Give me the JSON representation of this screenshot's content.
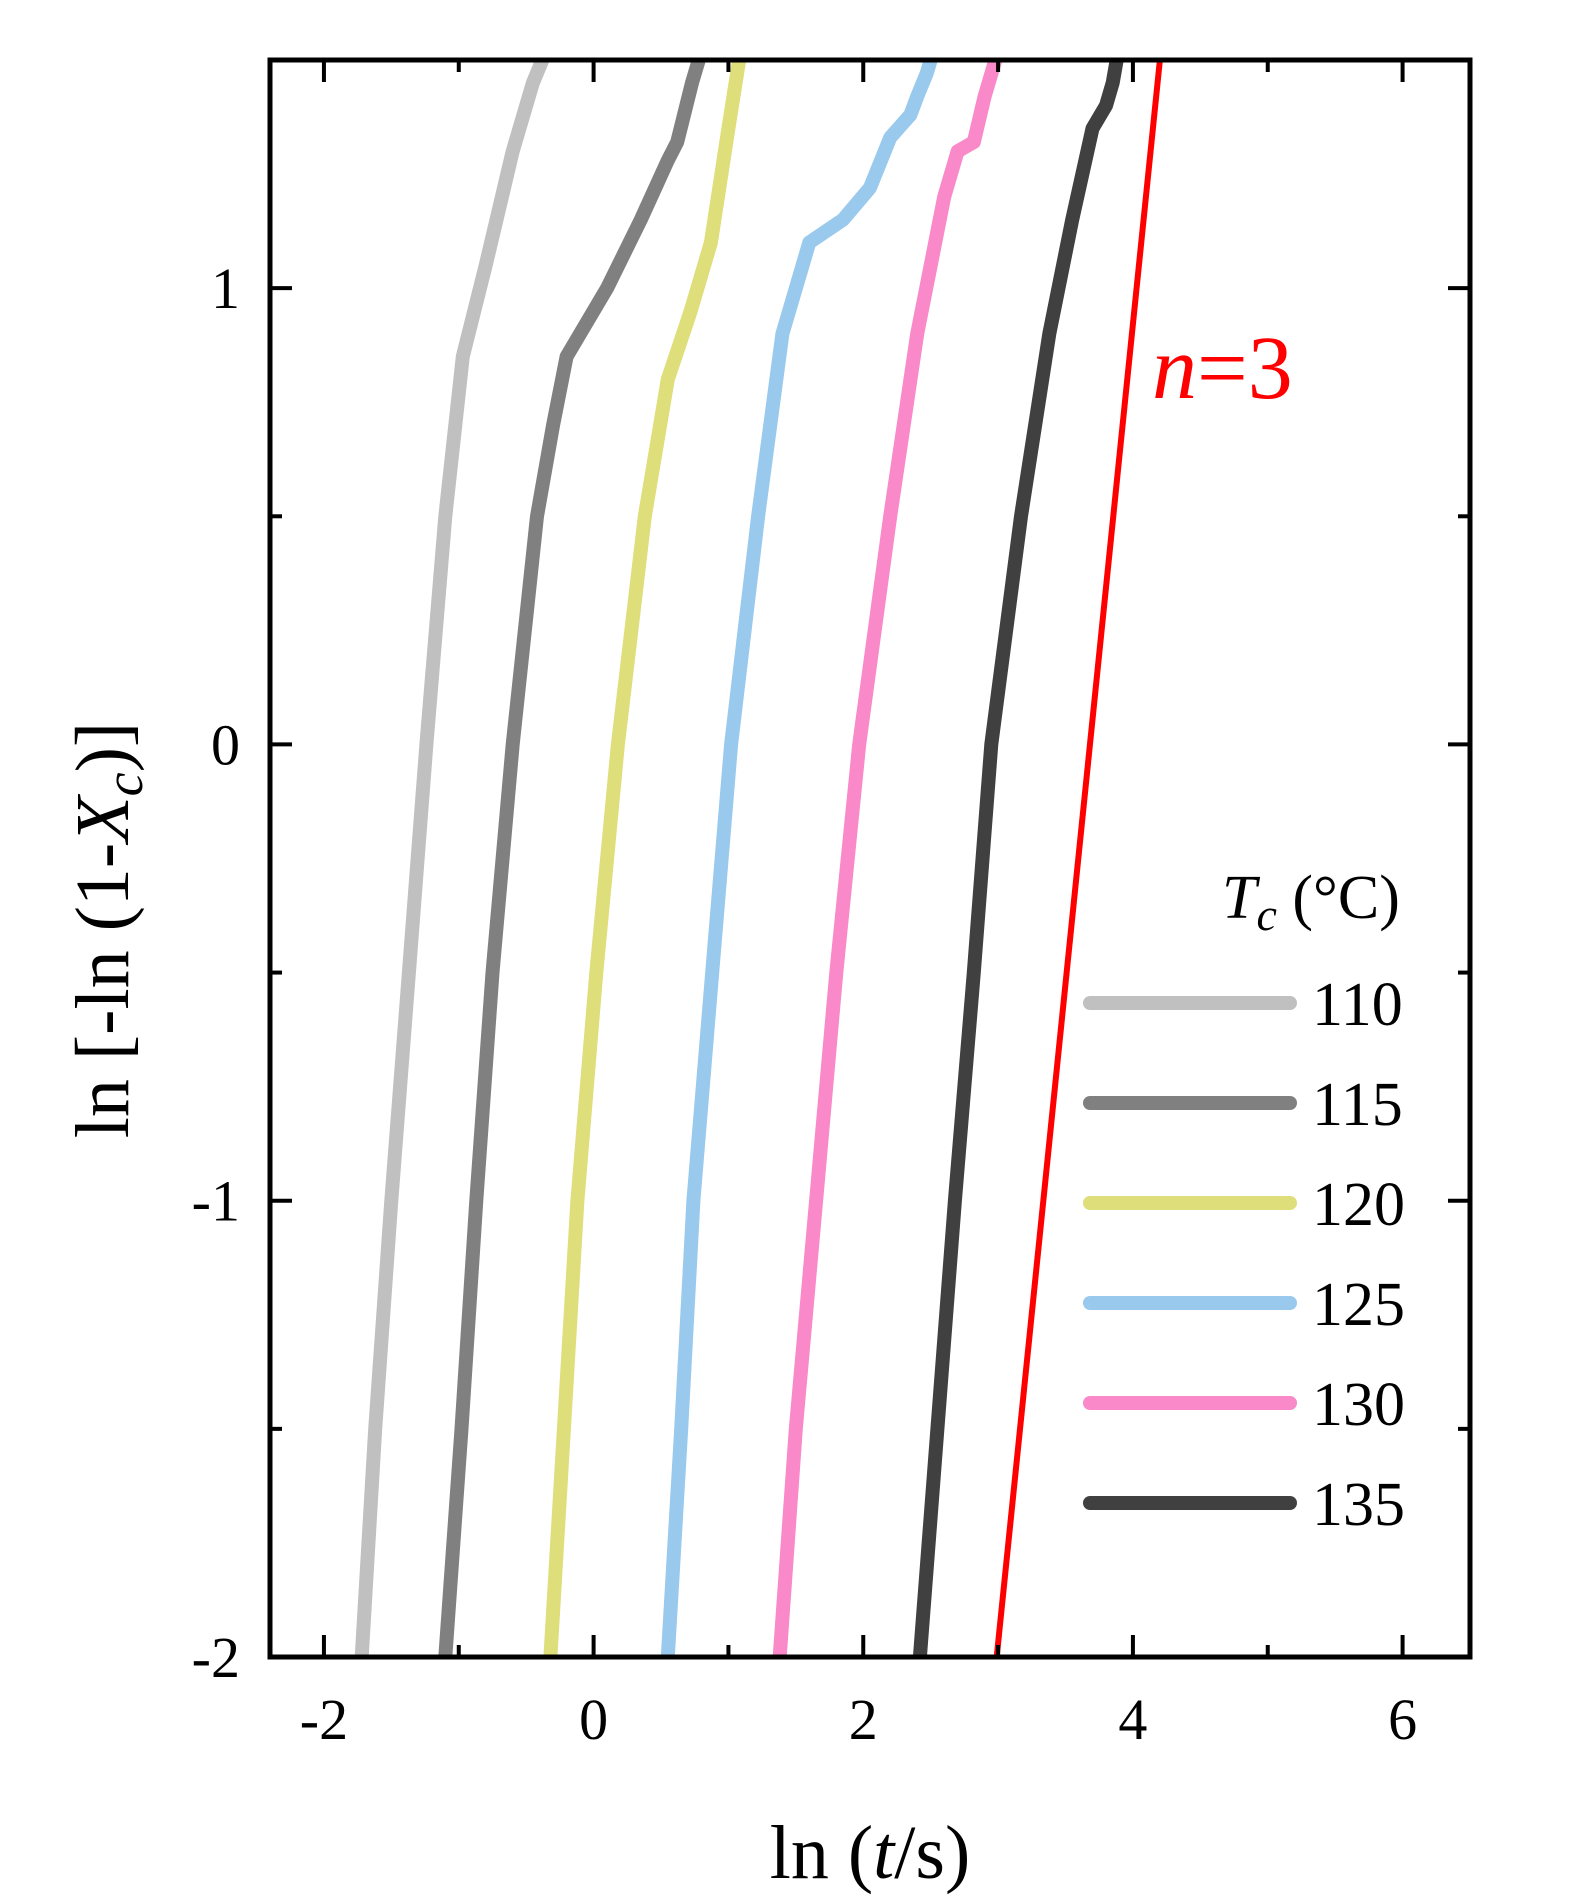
{
  "chart_data": {
    "type": "line",
    "xlabel": {
      "prefix": "ln (",
      "var": "t",
      "suffix": "/s)"
    },
    "ylabel": {
      "prefix": "ln [-ln (1-",
      "var": "X",
      "sub": "c",
      "suffix": ")]"
    },
    "xlim": [
      -2.4,
      6.5
    ],
    "ylim": [
      -2,
      1.5
    ],
    "xticks": [
      -2,
      0,
      2,
      4,
      6
    ],
    "xtick_labels": [
      "-2",
      "0",
      "2",
      "4",
      "6"
    ],
    "yticks": [
      -2,
      -1,
      0,
      1
    ],
    "ytick_labels": [
      "-2",
      "-1",
      "0",
      "1"
    ],
    "legend": {
      "title_var": "T",
      "title_sub": "c",
      "title_unit": " (°C)",
      "placement": "bottom-right"
    },
    "series": [
      {
        "name": "110",
        "color": "#c0c0c0",
        "points": [
          [
            -1.72,
            -2
          ],
          [
            -1.62,
            -1.5
          ],
          [
            -1.5,
            -1.0
          ],
          [
            -1.37,
            -0.5
          ],
          [
            -1.24,
            0
          ],
          [
            -1.1,
            0.5
          ],
          [
            -0.97,
            0.85
          ],
          [
            -0.8,
            1.05
          ],
          [
            -0.6,
            1.3
          ],
          [
            -0.45,
            1.45
          ],
          [
            -0.38,
            1.5
          ]
        ]
      },
      {
        "name": "115",
        "color": "#808080",
        "points": [
          [
            -1.1,
            -2
          ],
          [
            -0.98,
            -1.5
          ],
          [
            -0.87,
            -1.0
          ],
          [
            -0.75,
            -0.5
          ],
          [
            -0.6,
            0
          ],
          [
            -0.42,
            0.5
          ],
          [
            -0.3,
            0.7
          ],
          [
            -0.2,
            0.85
          ],
          [
            0.1,
            1.0
          ],
          [
            0.35,
            1.15
          ],
          [
            0.55,
            1.28
          ],
          [
            0.62,
            1.32
          ],
          [
            0.73,
            1.45
          ],
          [
            0.78,
            1.5
          ]
        ]
      },
      {
        "name": "120",
        "color": "#dede7a",
        "points": [
          [
            -0.32,
            -2
          ],
          [
            -0.22,
            -1.5
          ],
          [
            -0.12,
            -1.0
          ],
          [
            0.02,
            -0.5
          ],
          [
            0.18,
            0
          ],
          [
            0.38,
            0.5
          ],
          [
            0.55,
            0.8
          ],
          [
            0.72,
            0.95
          ],
          [
            0.87,
            1.1
          ],
          [
            1.0,
            1.35
          ],
          [
            1.08,
            1.5
          ]
        ]
      },
      {
        "name": "125",
        "color": "#99c9ec",
        "points": [
          [
            0.55,
            -2
          ],
          [
            0.65,
            -1.5
          ],
          [
            0.74,
            -1.0
          ],
          [
            0.88,
            -0.5
          ],
          [
            1.02,
            0
          ],
          [
            1.22,
            0.5
          ],
          [
            1.4,
            0.9
          ],
          [
            1.6,
            1.1
          ],
          [
            1.85,
            1.15
          ],
          [
            2.05,
            1.22
          ],
          [
            2.2,
            1.33
          ],
          [
            2.35,
            1.38
          ],
          [
            2.4,
            1.42
          ],
          [
            2.47,
            1.47
          ],
          [
            2.5,
            1.5
          ]
        ]
      },
      {
        "name": "130",
        "color": "#f989c8",
        "points": [
          [
            1.38,
            -2
          ],
          [
            1.5,
            -1.5
          ],
          [
            1.65,
            -1.0
          ],
          [
            1.8,
            -0.5
          ],
          [
            1.97,
            0
          ],
          [
            2.2,
            0.5
          ],
          [
            2.4,
            0.9
          ],
          [
            2.6,
            1.2
          ],
          [
            2.7,
            1.3
          ],
          [
            2.82,
            1.32
          ],
          [
            2.9,
            1.42
          ],
          [
            2.98,
            1.5
          ]
        ]
      },
      {
        "name": "135",
        "color": "#404040",
        "points": [
          [
            2.42,
            -2
          ],
          [
            2.55,
            -1.5
          ],
          [
            2.68,
            -1.0
          ],
          [
            2.82,
            -0.5
          ],
          [
            2.95,
            0
          ],
          [
            3.17,
            0.5
          ],
          [
            3.38,
            0.9
          ],
          [
            3.55,
            1.15
          ],
          [
            3.7,
            1.35
          ],
          [
            3.8,
            1.4
          ],
          [
            3.85,
            1.45
          ],
          [
            3.88,
            1.5
          ]
        ]
      },
      {
        "name": "n=3",
        "color": "#ff0000",
        "fit": true,
        "points": [
          [
            2.99,
            -2
          ],
          [
            4.2,
            1.5
          ]
        ]
      }
    ],
    "annotation": {
      "var": "n",
      "text": "=3",
      "color": "#ff0000"
    }
  }
}
